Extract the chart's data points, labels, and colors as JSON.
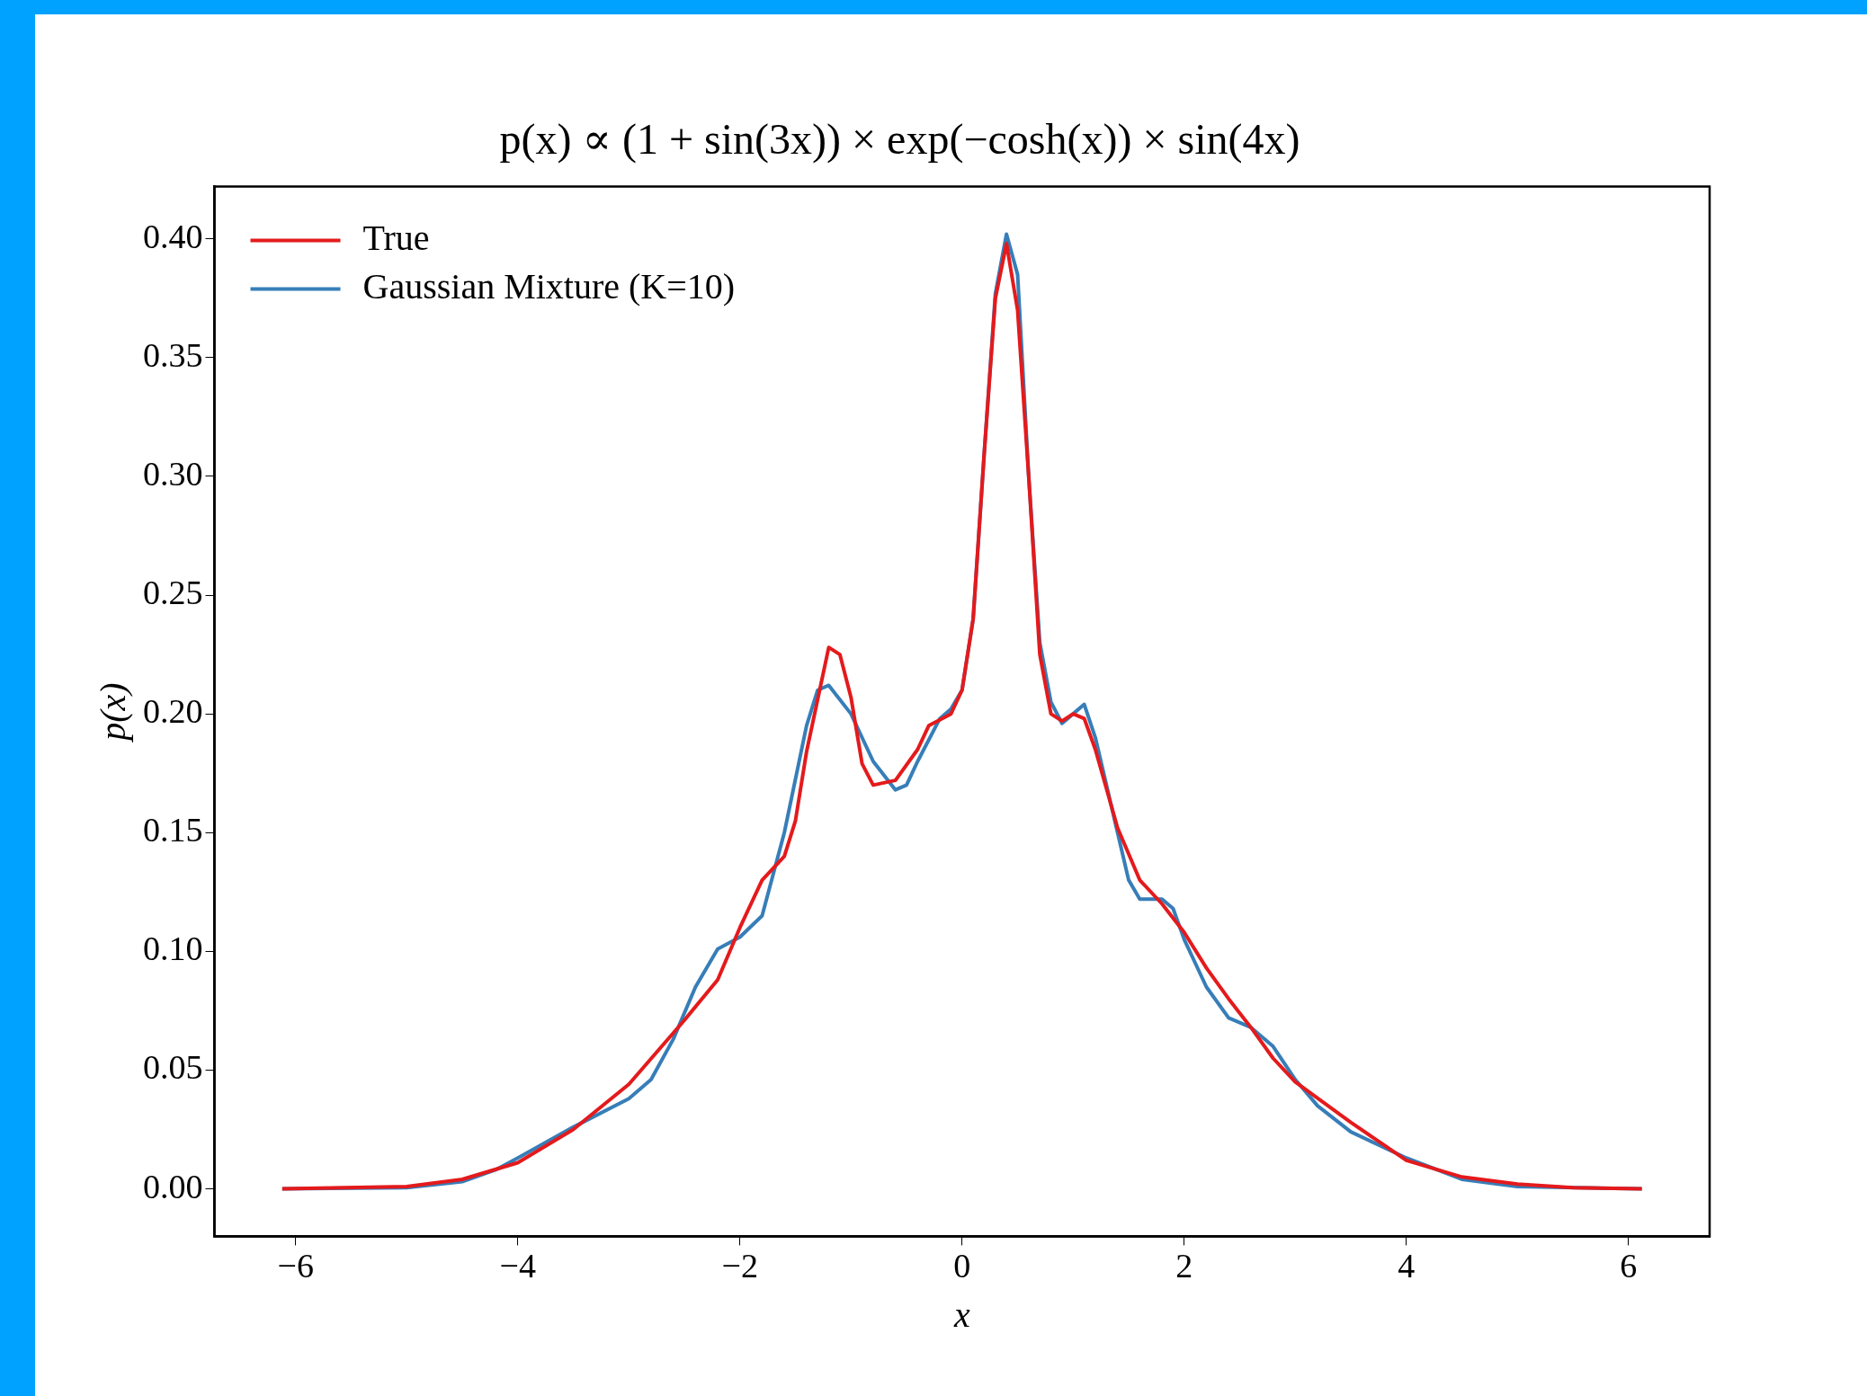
{
  "chart_data": {
    "type": "line",
    "title": "p(x) ∝ (1 + sin(3x)) × exp(−cosh(x)) × sin(4x)",
    "xlabel": "x",
    "ylabel": "p(x)",
    "xlim": [
      -6.73,
      6.73
    ],
    "xticks": [
      -6,
      -4,
      -2,
      0,
      2,
      4,
      6
    ],
    "ylim": [
      -0.02,
      0.422
    ],
    "yticks": [
      {
        "value": 0,
        "label": "0.00"
      },
      {
        "value": 0.05,
        "label": "0.05"
      },
      {
        "value": 0.1,
        "label": "0.10"
      },
      {
        "value": 0.15,
        "label": "0.15"
      },
      {
        "value": 0.2,
        "label": "0.20"
      },
      {
        "value": 0.25,
        "label": "0.25"
      },
      {
        "value": 0.3,
        "label": "0.30"
      },
      {
        "value": 0.35,
        "label": "0.35"
      },
      {
        "value": 0.4,
        "label": "0.40"
      }
    ],
    "grid": false,
    "legend": "top left",
    "marker": "none",
    "line_style": "solid",
    "series": [
      {
        "name": "True",
        "color": "#e41a1c",
        "x": [
          -6.12,
          -5,
          -4.5,
          -4,
          -3.5,
          -3,
          -2.5,
          -2.2,
          -2,
          -1.8,
          -1.6,
          -1.5,
          -1.4,
          -1.2,
          -1.1,
          -1,
          -0.9,
          -0.8,
          -0.6,
          -0.4,
          -0.3,
          -0.1,
          0,
          0.1,
          0.2,
          0.3,
          0.4,
          0.5,
          0.6,
          0.7,
          0.8,
          0.9,
          1,
          1.1,
          1.2,
          1.4,
          1.6,
          1.8,
          2,
          2.2,
          2.4,
          2.6,
          2.8,
          3,
          3.5,
          4,
          4.5,
          5,
          5.5,
          6.12
        ],
        "values": [
          0,
          0.001,
          0.004,
          0.011,
          0.025,
          0.044,
          0.071,
          0.088,
          0.11,
          0.13,
          0.14,
          0.155,
          0.184,
          0.228,
          0.225,
          0.207,
          0.179,
          0.17,
          0.172,
          0.185,
          0.195,
          0.2,
          0.21,
          0.24,
          0.31,
          0.375,
          0.398,
          0.37,
          0.3,
          0.225,
          0.2,
          0.197,
          0.2,
          0.198,
          0.185,
          0.152,
          0.13,
          0.12,
          0.108,
          0.093,
          0.08,
          0.068,
          0.055,
          0.045,
          0.028,
          0.012,
          0.005,
          0.002,
          0.0005,
          0
        ]
      },
      {
        "name": "Gaussian Mixture (K=10)",
        "color": "#377eb8",
        "x": [
          -6.12,
          -5,
          -4.5,
          -4.2,
          -4,
          -3.5,
          -3,
          -2.8,
          -2.6,
          -2.4,
          -2.2,
          -2,
          -1.8,
          -1.6,
          -1.4,
          -1.3,
          -1.2,
          -1,
          -0.8,
          -0.6,
          -0.5,
          -0.4,
          -0.2,
          -0.1,
          0,
          0.1,
          0.2,
          0.3,
          0.4,
          0.5,
          0.6,
          0.7,
          0.8,
          0.9,
          1,
          1.1,
          1.2,
          1.4,
          1.5,
          1.6,
          1.8,
          1.9,
          2,
          2.2,
          2.4,
          2.6,
          2.8,
          3,
          3.2,
          3.5,
          4,
          4.5,
          5,
          6.12
        ],
        "values": [
          0,
          0.0005,
          0.003,
          0.008,
          0.013,
          0.026,
          0.038,
          0.046,
          0.063,
          0.085,
          0.101,
          0.106,
          0.115,
          0.15,
          0.195,
          0.21,
          0.212,
          0.2,
          0.18,
          0.168,
          0.17,
          0.18,
          0.198,
          0.202,
          0.21,
          0.24,
          0.31,
          0.377,
          0.402,
          0.385,
          0.3,
          0.23,
          0.205,
          0.196,
          0.2,
          0.204,
          0.19,
          0.15,
          0.13,
          0.122,
          0.122,
          0.118,
          0.105,
          0.085,
          0.072,
          0.068,
          0.06,
          0.046,
          0.035,
          0.024,
          0.013,
          0.004,
          0.001,
          0
        ]
      }
    ]
  }
}
